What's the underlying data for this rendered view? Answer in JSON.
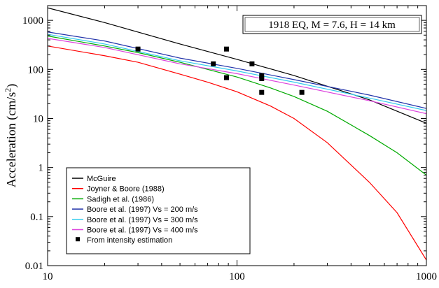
{
  "chart_data": {
    "type": "line",
    "x_scale": "log",
    "y_scale": "log",
    "xlim": [
      10,
      1000
    ],
    "ylim": [
      0.01,
      2000
    ],
    "x_ticks": [
      10,
      100,
      1000
    ],
    "x_tick_labels": [
      "10",
      "100",
      "1000"
    ],
    "y_ticks": [
      0.01,
      0.1,
      1,
      10,
      100,
      1000
    ],
    "y_tick_labels": [
      "0.01",
      "0.1",
      "1",
      "10",
      "100",
      "1000"
    ],
    "xlabel": "",
    "ylabel": "Acceleration (cm/s²)",
    "ylabel_main": "Acceleration (cm/s",
    "ylabel_sup": "2",
    "ylabel_end": ")",
    "annotation": "1918 EQ, M = 7.6, H = 14 km",
    "grid": false,
    "legend_position": "bottom-left",
    "series": [
      {
        "name": "McGuire",
        "color": "#000000",
        "x": [
          10,
          20,
          50,
          100,
          200,
          500,
          1000
        ],
        "y": [
          1800,
          900,
          330,
          160,
          75,
          24,
          8
        ]
      },
      {
        "name": "Joyner & Boore (1988)",
        "color": "#ff0000",
        "x": [
          10,
          20,
          30,
          50,
          70,
          100,
          150,
          200,
          300,
          500,
          700,
          1000
        ],
        "y": [
          300,
          190,
          140,
          80,
          55,
          35,
          18,
          10,
          3.2,
          0.5,
          0.12,
          0.013
        ]
      },
      {
        "name": "Sadigh et al. (1986)",
        "color": "#00aa00",
        "x": [
          10,
          20,
          30,
          50,
          70,
          100,
          150,
          200,
          300,
          500,
          700,
          1000
        ],
        "y": [
          480,
          300,
          220,
          140,
          100,
          70,
          42,
          28,
          14,
          4.5,
          2,
          0.7
        ]
      },
      {
        "name": "Boore et al. (1997) Vs = 200 m/s",
        "color": "#2233aa",
        "x": [
          10,
          20,
          50,
          100,
          200,
          500,
          1000
        ],
        "y": [
          580,
          380,
          170,
          105,
          62,
          30,
          16
        ]
      },
      {
        "name": "Boore et al. (1997) Vs = 300 m/s",
        "color": "#33ccee",
        "x": [
          10,
          20,
          50,
          100,
          200,
          500,
          1000
        ],
        "y": [
          520,
          330,
          150,
          93,
          55,
          26,
          14.5
        ]
      },
      {
        "name": "Boore et al. (1997) Vs = 400 m/s",
        "color": "#dd44dd",
        "x": [
          10,
          20,
          50,
          100,
          200,
          500,
          1000
        ],
        "y": [
          430,
          280,
          130,
          82,
          48,
          23,
          12.5
        ]
      }
    ],
    "points": {
      "name": "From intensity estimation",
      "color": "#000000",
      "x": [
        30,
        75,
        88,
        88,
        120,
        135,
        135,
        135,
        220
      ],
      "y": [
        260,
        130,
        260,
        68,
        130,
        75,
        65,
        34,
        34
      ]
    }
  }
}
